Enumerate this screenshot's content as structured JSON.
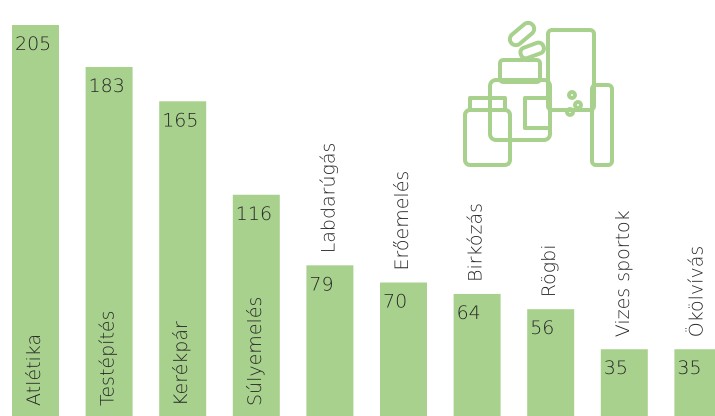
{
  "chart_data": {
    "type": "bar",
    "categories": [
      "Atlétika",
      "Testépítés",
      "Kerékpár",
      "Súlyemelés",
      "Labdarúgás",
      "Erőemelés",
      "Birkózás",
      "Rögbi",
      "Vizes sportok",
      "Ökölvívás"
    ],
    "values": [
      205,
      183,
      165,
      116,
      79,
      70,
      64,
      56,
      35,
      35
    ],
    "color": "#a9d18e",
    "ylim": [
      0,
      205
    ]
  }
}
